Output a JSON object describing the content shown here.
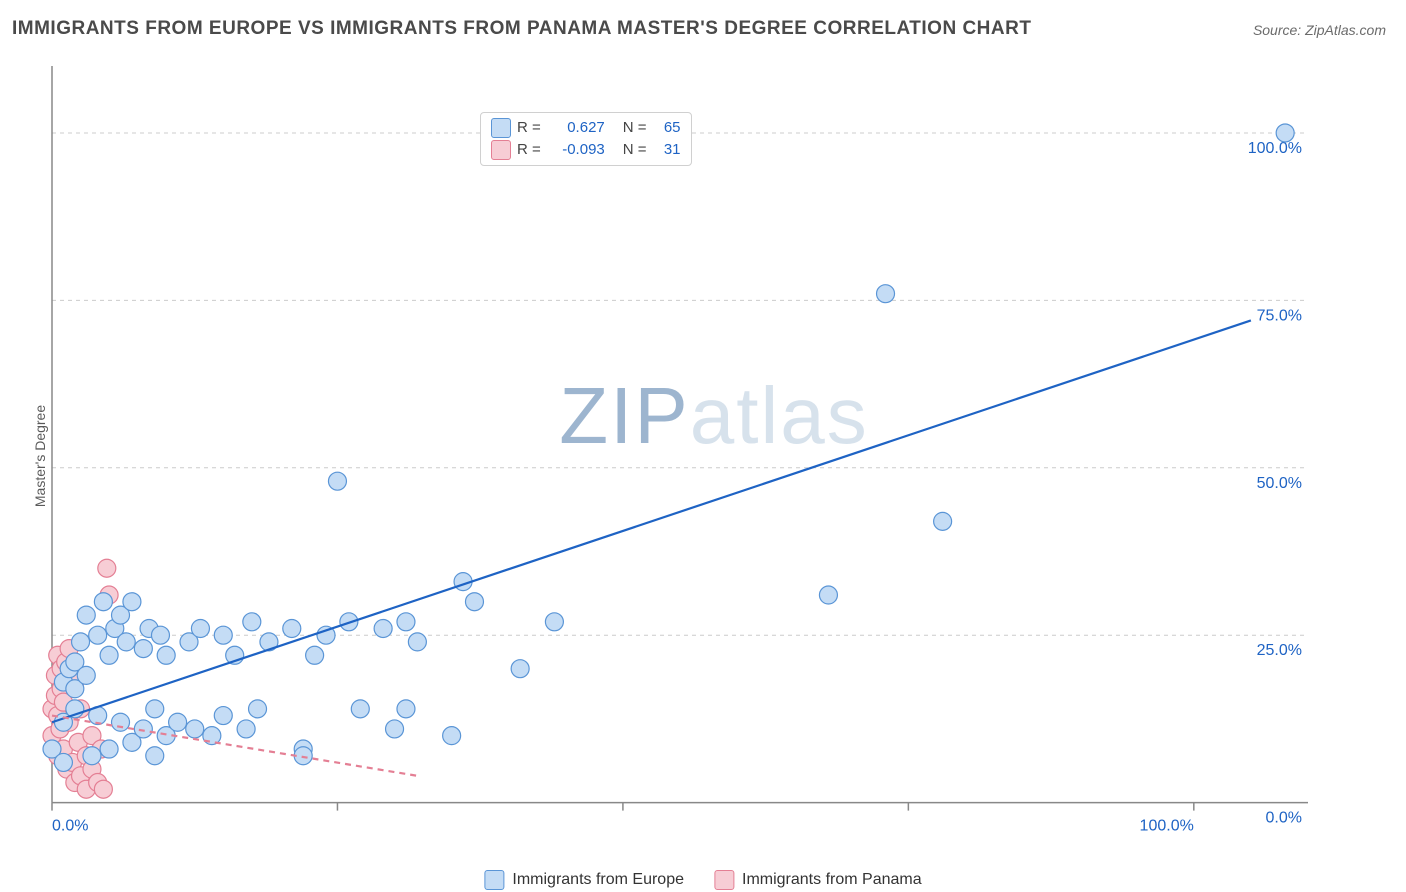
{
  "title": "IMMIGRANTS FROM EUROPE VS IMMIGRANTS FROM PANAMA MASTER'S DEGREE CORRELATION CHART",
  "source_prefix": "Source: ",
  "source_site": "ZipAtlas.com",
  "y_axis_label": "Master's Degree",
  "watermark_zip": "ZIP",
  "watermark_atlas": "atlas",
  "chart": {
    "type": "scatter",
    "xlim": [
      0,
      110
    ],
    "ylim": [
      -2,
      110
    ],
    "x_ticks": [
      0,
      25,
      50,
      75,
      100
    ],
    "y_ticks": [
      0,
      25,
      50,
      75,
      100
    ],
    "x_tick_labels": [
      "0.0%",
      "",
      "",
      "",
      "100.0%"
    ],
    "y_tick_labels": [
      "0.0%",
      "25.0%",
      "50.0%",
      "75.0%",
      "100.0%"
    ],
    "grid_color": "#cccccc",
    "axis_color": "#888888",
    "background_color": "#ffffff",
    "point_radius": 9,
    "point_stroke_width": 1.2,
    "regression_stroke_width": 2.2,
    "series": [
      {
        "name": "Immigrants from Europe",
        "color_fill": "#c4dcf5",
        "color_stroke": "#5a95d6",
        "line_color": "#1e63c4",
        "line_dash": "none",
        "R_label": "R =",
        "R": "0.627",
        "N_label": "N =",
        "N": "65",
        "regression": {
          "x1": 0,
          "y1": 12,
          "x2": 105,
          "y2": 72
        },
        "points": [
          [
            0,
            8
          ],
          [
            1,
            6
          ],
          [
            1,
            12
          ],
          [
            1,
            18
          ],
          [
            1.5,
            20
          ],
          [
            2,
            14
          ],
          [
            2,
            17
          ],
          [
            2,
            21
          ],
          [
            2.5,
            24
          ],
          [
            3,
            19
          ],
          [
            3,
            28
          ],
          [
            3.5,
            7
          ],
          [
            4,
            13
          ],
          [
            4,
            25
          ],
          [
            4.5,
            30
          ],
          [
            5,
            8
          ],
          [
            5,
            22
          ],
          [
            5.5,
            26
          ],
          [
            6,
            12
          ],
          [
            6,
            28
          ],
          [
            6.5,
            24
          ],
          [
            7,
            9
          ],
          [
            7,
            30
          ],
          [
            8,
            11
          ],
          [
            8,
            23
          ],
          [
            8.5,
            26
          ],
          [
            9,
            14
          ],
          [
            9,
            7
          ],
          [
            9.5,
            25
          ],
          [
            10,
            10
          ],
          [
            10,
            22
          ],
          [
            11,
            12
          ],
          [
            12,
            24
          ],
          [
            12.5,
            11
          ],
          [
            13,
            26
          ],
          [
            14,
            10
          ],
          [
            15,
            25
          ],
          [
            15,
            13
          ],
          [
            16,
            22
          ],
          [
            17,
            11
          ],
          [
            17.5,
            27
          ],
          [
            18,
            14
          ],
          [
            19,
            24
          ],
          [
            21,
            26
          ],
          [
            22,
            8
          ],
          [
            22,
            7
          ],
          [
            23,
            22
          ],
          [
            24,
            25
          ],
          [
            25,
            48
          ],
          [
            26,
            27
          ],
          [
            27,
            14
          ],
          [
            29,
            26
          ],
          [
            30,
            11
          ],
          [
            31,
            27
          ],
          [
            31,
            14
          ],
          [
            32,
            24
          ],
          [
            35,
            10
          ],
          [
            36,
            33
          ],
          [
            37,
            30
          ],
          [
            41,
            20
          ],
          [
            44,
            27
          ],
          [
            68,
            31
          ],
          [
            73,
            76
          ],
          [
            78,
            42
          ],
          [
            108,
            100
          ]
        ]
      },
      {
        "name": "Immigrants from Panama",
        "color_fill": "#f7cdd5",
        "color_stroke": "#e47f94",
        "line_color": "#e47f94",
        "line_dash": "6 5",
        "R_label": "R =",
        "R": "-0.093",
        "N_label": "N =",
        "N": "31",
        "regression": {
          "x1": 0,
          "y1": 13,
          "x2": 32,
          "y2": 4
        },
        "points": [
          [
            0,
            10
          ],
          [
            0,
            14
          ],
          [
            0.3,
            16
          ],
          [
            0.3,
            19
          ],
          [
            0.5,
            7
          ],
          [
            0.5,
            13
          ],
          [
            0.5,
            22
          ],
          [
            0.7,
            11
          ],
          [
            0.8,
            17
          ],
          [
            0.8,
            20
          ],
          [
            1,
            15
          ],
          [
            1,
            8
          ],
          [
            1.2,
            21
          ],
          [
            1.3,
            5
          ],
          [
            1.5,
            12
          ],
          [
            1.5,
            23
          ],
          [
            1.8,
            6
          ],
          [
            2,
            18
          ],
          [
            2,
            3
          ],
          [
            2.3,
            9
          ],
          [
            2.5,
            14
          ],
          [
            2.5,
            4
          ],
          [
            3,
            7
          ],
          [
            3,
            2
          ],
          [
            3.5,
            10
          ],
          [
            3.5,
            5
          ],
          [
            4,
            3
          ],
          [
            4.3,
            8
          ],
          [
            4.5,
            2
          ],
          [
            4.8,
            35
          ],
          [
            5,
            31
          ]
        ]
      }
    ]
  },
  "legend_bottom": [
    {
      "label": "Immigrants from Europe",
      "fill": "#c4dcf5",
      "stroke": "#5a95d6"
    },
    {
      "label": "Immigrants from Panama",
      "fill": "#f7cdd5",
      "stroke": "#e47f94"
    }
  ],
  "tick_label_color_x": "#1e63c4",
  "tick_label_color_y": "#1e63c4"
}
